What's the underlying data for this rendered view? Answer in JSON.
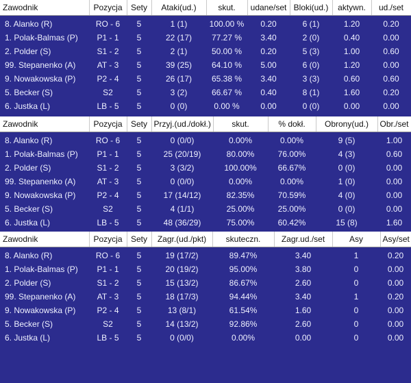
{
  "tables": [
    {
      "name": "attack-block-table",
      "headers": [
        "Zawodnik",
        "Pozycja",
        "Sety",
        "Ataki(ud.)",
        "skut.",
        "udane/set",
        "Bloki(ud.)",
        "aktywn.",
        "ud./set"
      ],
      "rows": [
        [
          "8. Alanko (R)",
          "RO - 6",
          "5",
          "1 (1)",
          "100.00 %",
          "0.20",
          "6 (1)",
          "1.20",
          "0.20"
        ],
        [
          "1. Polak-Balmas (P)",
          "P1 - 1",
          "5",
          "22 (17)",
          "77.27 %",
          "3.40",
          "2 (0)",
          "0.40",
          "0.00"
        ],
        [
          "2. Polder (S)",
          "S1 - 2",
          "5",
          "2 (1)",
          "50.00 %",
          "0.20",
          "5 (3)",
          "1.00",
          "0.60"
        ],
        [
          "99. Stepanenko (A)",
          "AT - 3",
          "5",
          "39 (25)",
          "64.10 %",
          "5.00",
          "6 (0)",
          "1.20",
          "0.00"
        ],
        [
          "9. Nowakowska (P)",
          "P2 - 4",
          "5",
          "26 (17)",
          "65.38 %",
          "3.40",
          "3 (3)",
          "0.60",
          "0.60"
        ],
        [
          "5. Becker (S)",
          "S2",
          "5",
          "3 (2)",
          "66.67 %",
          "0.40",
          "8 (1)",
          "1.60",
          "0.20"
        ],
        [
          "6. Justka (L)",
          "LB - 5",
          "5",
          "0 (0)",
          "0.00 %",
          "0.00",
          "0 (0)",
          "0.00",
          "0.00"
        ]
      ]
    },
    {
      "name": "reception-defense-table",
      "headers": [
        "Zawodnik",
        "Pozycja",
        "Sety",
        "Przyj.(ud./dokł.)",
        "skut.",
        "% dokł.",
        "Obrony(ud.)",
        "Obr./set"
      ],
      "rows": [
        [
          "8. Alanko (R)",
          "RO - 6",
          "5",
          "0 (0/0)",
          "0.00%",
          "0.00%",
          "9 (5)",
          "1.00"
        ],
        [
          "1. Polak-Balmas (P)",
          "P1 - 1",
          "5",
          "25 (20/19)",
          "80.00%",
          "76.00%",
          "4 (3)",
          "0.60"
        ],
        [
          "2. Polder (S)",
          "S1 - 2",
          "5",
          "3 (3/2)",
          "100.00%",
          "66.67%",
          "0 (0)",
          "0.00"
        ],
        [
          "99. Stepanenko (A)",
          "AT - 3",
          "5",
          "0 (0/0)",
          "0.00%",
          "0.00%",
          "1 (0)",
          "0.00"
        ],
        [
          "9. Nowakowska (P)",
          "P2 - 4",
          "5",
          "17 (14/12)",
          "82.35%",
          "70.59%",
          "4 (0)",
          "0.00"
        ],
        [
          "5. Becker (S)",
          "S2",
          "5",
          "4 (1/1)",
          "25.00%",
          "25.00%",
          "0 (0)",
          "0.00"
        ],
        [
          "6. Justka (L)",
          "LB - 5",
          "5",
          "48 (36/29)",
          "75.00%",
          "60.42%",
          "15 (8)",
          "1.60"
        ]
      ]
    },
    {
      "name": "serve-table",
      "headers": [
        "Zawodnik",
        "Pozycja",
        "Sety",
        "Zagr.(ud./pkt)",
        "skuteczn.",
        "Zagr.ud./set",
        "Asy",
        "Asy/set"
      ],
      "rows": [
        [
          "8. Alanko (R)",
          "RO - 6",
          "5",
          "19 (17/2)",
          "89.47%",
          "3.40",
          "1",
          "0.20"
        ],
        [
          "1. Polak-Balmas (P)",
          "P1 - 1",
          "5",
          "20 (19/2)",
          "95.00%",
          "3.80",
          "0",
          "0.00"
        ],
        [
          "2. Polder (S)",
          "S1 - 2",
          "5",
          "15 (13/2)",
          "86.67%",
          "2.60",
          "0",
          "0.00"
        ],
        [
          "99. Stepanenko (A)",
          "AT - 3",
          "5",
          "18 (17/3)",
          "94.44%",
          "3.40",
          "1",
          "0.20"
        ],
        [
          "9. Nowakowska (P)",
          "P2 - 4",
          "5",
          "13 (8/1)",
          "61.54%",
          "1.60",
          "0",
          "0.00"
        ],
        [
          "5. Becker (S)",
          "S2",
          "5",
          "14 (13/2)",
          "92.86%",
          "2.60",
          "0",
          "0.00"
        ],
        [
          "6. Justka (L)",
          "LB - 5",
          "5",
          "0 (0/0)",
          "0.00%",
          "0.00",
          "0",
          "0.00"
        ]
      ]
    }
  ]
}
